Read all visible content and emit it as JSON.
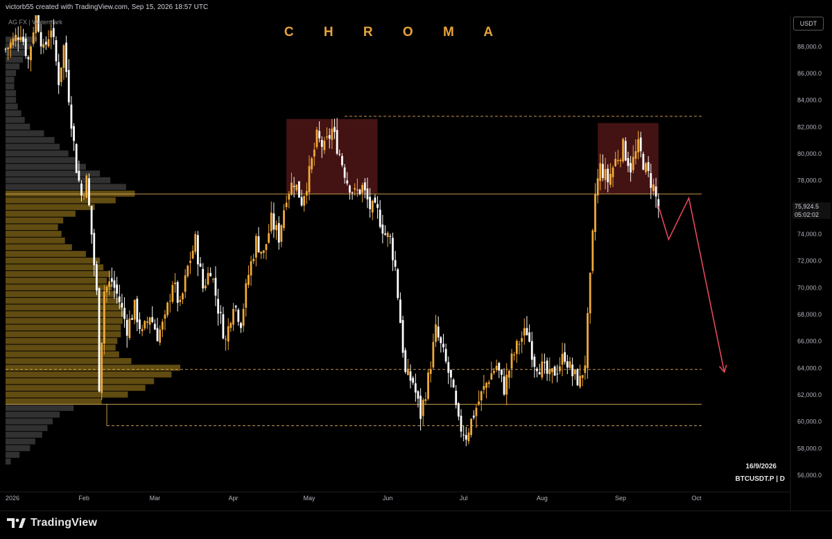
{
  "header": {
    "caption": "victorb55 created with TradingView.com, Sep 15, 2026 18:57 UTC"
  },
  "overlay": {
    "brand_title": "C H R O M A",
    "watermark": "AG FX | Watermark",
    "currency": "USDT",
    "last_price": "75,924.5",
    "countdown": "05:02:02",
    "date": "16/9/2026",
    "symbol": "BTCUSDT.P | D"
  },
  "footer": {
    "logo_text": "TradingView"
  },
  "colors": {
    "background": "#000000",
    "bull_candle": "#f0a93a",
    "bear_candle": "#ffffff",
    "volume_profile_value_area": "#6b5414",
    "volume_profile_outside": "#3a3a3a",
    "resistance_zone": "#5a1a1a",
    "projection_arrow": "#e8475a",
    "level_line": "#e6b35a"
  },
  "chart_data": {
    "type": "candlestick",
    "symbol": "BTCUSDT.P",
    "timeframe": "D",
    "y_axis": {
      "ticks": [
        56000,
        58000,
        60000,
        62000,
        64000,
        66000,
        68000,
        70000,
        72000,
        74000,
        76000,
        78000,
        80000,
        82000,
        84000,
        86000,
        88000
      ],
      "tick_labels": [
        "56,000.0",
        "58,000.0",
        "60,000.0",
        "62,000.0",
        "64,000.0",
        "66,000.0",
        "68,000.0",
        "70,000.0",
        "72,000.0",
        "74,000.0",
        "76,000.0",
        "78,000.0",
        "80,000.0",
        "82,000.0",
        "84,000.0",
        "86,000.0",
        "88,000.0"
      ],
      "range": [
        55000,
        90500
      ]
    },
    "x_axis": {
      "labels": [
        "2026",
        "Feb",
        "Mar",
        "Apr",
        "May",
        "Jun",
        "Jul",
        "Aug",
        "Sep",
        "Oct"
      ],
      "label_dates": [
        "2026-01-01",
        "2026-02-01",
        "2026-03-01",
        "2026-04-01",
        "2026-05-01",
        "2026-06-01",
        "2026-07-01",
        "2026-08-01",
        "2026-09-01",
        "2026-10-01"
      ],
      "range": [
        "2026-01-01",
        "2026-10-31"
      ]
    },
    "series_close": [
      [
        "2026-01-01",
        87800
      ],
      [
        "2026-01-04",
        88400
      ],
      [
        "2026-01-07",
        89200
      ],
      [
        "2026-01-10",
        87000
      ],
      [
        "2026-01-13",
        90600
      ],
      [
        "2026-01-16",
        87600
      ],
      [
        "2026-01-19",
        89500
      ],
      [
        "2026-01-22",
        85500
      ],
      [
        "2026-01-24",
        88000
      ],
      [
        "2026-01-27",
        82500
      ],
      [
        "2026-01-29",
        79000
      ],
      [
        "2026-01-31",
        76900
      ],
      [
        "2026-02-02",
        78000
      ],
      [
        "2026-02-04",
        74000
      ],
      [
        "2026-02-06",
        69500
      ],
      [
        "2026-02-07",
        62800
      ],
      [
        "2026-02-09",
        69800
      ],
      [
        "2026-02-12",
        70500
      ],
      [
        "2026-02-15",
        69000
      ],
      [
        "2026-02-18",
        67000
      ],
      [
        "2026-02-21",
        68500
      ],
      [
        "2026-02-24",
        66500
      ],
      [
        "2026-02-27",
        68000
      ],
      [
        "2026-03-02",
        66500
      ],
      [
        "2026-03-05",
        67500
      ],
      [
        "2026-03-08",
        70500
      ],
      [
        "2026-03-11",
        68500
      ],
      [
        "2026-03-14",
        71500
      ],
      [
        "2026-03-17",
        73500
      ],
      [
        "2026-03-20",
        70000
      ],
      [
        "2026-03-23",
        71500
      ],
      [
        "2026-03-26",
        68500
      ],
      [
        "2026-03-29",
        66000
      ],
      [
        "2026-04-01",
        69000
      ],
      [
        "2026-04-04",
        67500
      ],
      [
        "2026-04-07",
        71000
      ],
      [
        "2026-04-10",
        73500
      ],
      [
        "2026-04-13",
        72500
      ],
      [
        "2026-04-16",
        75000
      ],
      [
        "2026-04-19",
        73800
      ],
      [
        "2026-04-22",
        77000
      ],
      [
        "2026-04-25",
        78000
      ],
      [
        "2026-04-28",
        76500
      ],
      [
        "2026-05-01",
        78500
      ],
      [
        "2026-05-04",
        81200
      ],
      [
        "2026-05-07",
        80400
      ],
      [
        "2026-05-10",
        81800
      ],
      [
        "2026-05-13",
        80000
      ],
      [
        "2026-05-16",
        78000
      ],
      [
        "2026-05-19",
        77000
      ],
      [
        "2026-05-22",
        77500
      ],
      [
        "2026-05-25",
        76000
      ],
      [
        "2026-05-28",
        75600
      ],
      [
        "2026-05-31",
        74000
      ],
      [
        "2026-06-02",
        73600
      ],
      [
        "2026-06-04",
        71500
      ],
      [
        "2026-06-06",
        67500
      ],
      [
        "2026-06-08",
        63500
      ],
      [
        "2026-06-11",
        63000
      ],
      [
        "2026-06-14",
        60500
      ],
      [
        "2026-06-17",
        63200
      ],
      [
        "2026-06-20",
        66800
      ],
      [
        "2026-06-23",
        65000
      ],
      [
        "2026-06-26",
        63000
      ],
      [
        "2026-06-29",
        59800
      ],
      [
        "2026-07-02",
        59000
      ],
      [
        "2026-07-05",
        60600
      ],
      [
        "2026-07-08",
        62000
      ],
      [
        "2026-07-11",
        63300
      ],
      [
        "2026-07-14",
        64200
      ],
      [
        "2026-07-17",
        62500
      ],
      [
        "2026-07-20",
        64600
      ],
      [
        "2026-07-23",
        66000
      ],
      [
        "2026-07-26",
        66800
      ],
      [
        "2026-07-29",
        64500
      ],
      [
        "2026-08-01",
        64000
      ],
      [
        "2026-08-04",
        63300
      ],
      [
        "2026-08-07",
        64000
      ],
      [
        "2026-08-10",
        65000
      ],
      [
        "2026-08-13",
        63500
      ],
      [
        "2026-08-16",
        63000
      ],
      [
        "2026-08-18",
        64500
      ],
      [
        "2026-08-20",
        70500
      ],
      [
        "2026-08-22",
        77000
      ],
      [
        "2026-08-24",
        79000
      ],
      [
        "2026-08-27",
        78000
      ],
      [
        "2026-08-30",
        79500
      ],
      [
        "2026-09-02",
        80500
      ],
      [
        "2026-09-05",
        79000
      ],
      [
        "2026-09-08",
        80500
      ],
      [
        "2026-09-11",
        78800
      ],
      [
        "2026-09-14",
        77500
      ],
      [
        "2026-09-16",
        75924.5
      ]
    ],
    "horizontal_levels": [
      {
        "price": 82800,
        "style": "dashed"
      },
      {
        "price": 77000,
        "style": "solid"
      },
      {
        "price": 63900,
        "style": "dashed"
      },
      {
        "price": 61300,
        "style": "solid"
      },
      {
        "price": 59700,
        "style": "dashed"
      }
    ],
    "resistance_zones": [
      {
        "from": "2026-04-22",
        "to": "2026-05-28",
        "low": 77000,
        "high": 82600
      },
      {
        "from": "2026-08-23",
        "to": "2026-09-16",
        "low": 77000,
        "high": 82300
      }
    ],
    "projection_path": [
      [
        "2026-09-16",
        76100
      ],
      [
        "2026-09-20",
        73600
      ],
      [
        "2026-09-28",
        76700
      ],
      [
        "2026-10-12",
        63700
      ]
    ],
    "volume_profile": {
      "value_area": [
        61300,
        77000
      ],
      "poc_price": 64000,
      "bins": [
        [
          88500,
          0.18
        ],
        [
          88000,
          0.15
        ],
        [
          87500,
          0.12
        ],
        [
          87000,
          0.1
        ],
        [
          86500,
          0.08
        ],
        [
          86000,
          0.06
        ],
        [
          85500,
          0.05
        ],
        [
          85000,
          0.05
        ],
        [
          84500,
          0.06
        ],
        [
          84000,
          0.06
        ],
        [
          83500,
          0.07
        ],
        [
          83000,
          0.09
        ],
        [
          82500,
          0.11
        ],
        [
          82000,
          0.14
        ],
        [
          81500,
          0.22
        ],
        [
          81000,
          0.28
        ],
        [
          80500,
          0.31
        ],
        [
          80000,
          0.36
        ],
        [
          79500,
          0.4
        ],
        [
          79000,
          0.46
        ],
        [
          78500,
          0.54
        ],
        [
          78000,
          0.6
        ],
        [
          77500,
          0.69
        ],
        [
          77000,
          0.74
        ],
        [
          76500,
          0.63
        ],
        [
          76000,
          0.51
        ],
        [
          75500,
          0.4
        ],
        [
          75000,
          0.33
        ],
        [
          74500,
          0.3
        ],
        [
          74000,
          0.32
        ],
        [
          73500,
          0.34
        ],
        [
          73000,
          0.38
        ],
        [
          72500,
          0.46
        ],
        [
          72000,
          0.54
        ],
        [
          71500,
          0.56
        ],
        [
          71000,
          0.6
        ],
        [
          70500,
          0.58
        ],
        [
          70000,
          0.61
        ],
        [
          69500,
          0.63
        ],
        [
          69000,
          0.65
        ],
        [
          68500,
          0.67
        ],
        [
          68000,
          0.68
        ],
        [
          67500,
          0.67
        ],
        [
          67000,
          0.66
        ],
        [
          66500,
          0.66
        ],
        [
          66000,
          0.64
        ],
        [
          65500,
          0.63
        ],
        [
          65000,
          0.65
        ],
        [
          64500,
          0.72
        ],
        [
          64000,
          1.0
        ],
        [
          63500,
          0.95
        ],
        [
          63000,
          0.85
        ],
        [
          62500,
          0.8
        ],
        [
          62000,
          0.7
        ],
        [
          61500,
          0.55
        ],
        [
          61000,
          0.39
        ],
        [
          60500,
          0.31
        ],
        [
          60000,
          0.27
        ],
        [
          59500,
          0.24
        ],
        [
          59000,
          0.21
        ],
        [
          58500,
          0.17
        ],
        [
          58000,
          0.14
        ],
        [
          57500,
          0.08
        ],
        [
          57000,
          0.03
        ]
      ]
    }
  }
}
